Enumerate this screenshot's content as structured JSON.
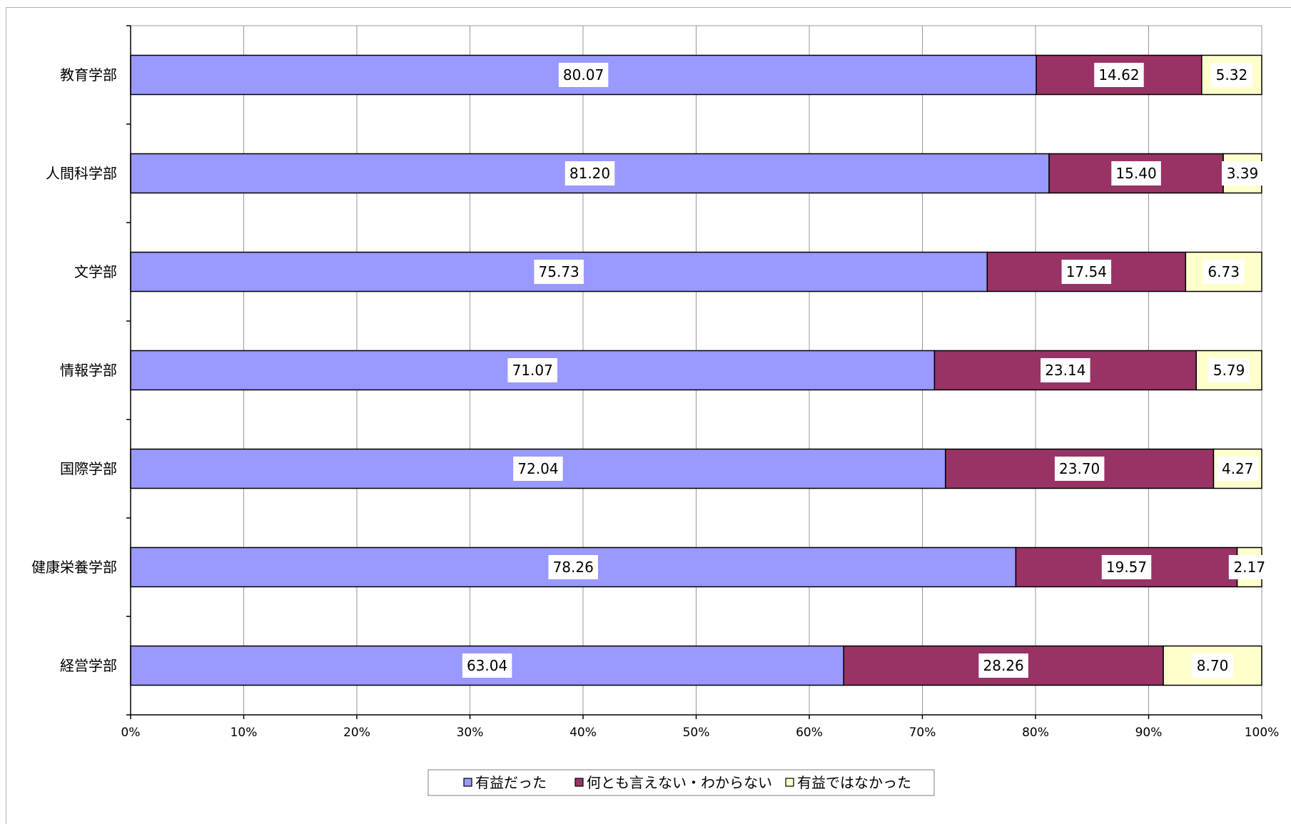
{
  "chart_data": {
    "type": "bar",
    "orientation": "horizontal",
    "stacked": "percent",
    "categories": [
      "教育学部",
      "人間科学部",
      "文学部",
      "情報学部",
      "国際学部",
      "健康栄養学部",
      "経営学部"
    ],
    "series": [
      {
        "name": "有益だった",
        "color": "#9999ff",
        "values": [
          80.07,
          81.2,
          75.73,
          71.07,
          72.04,
          78.26,
          63.04
        ]
      },
      {
        "name": "何とも言えない・わからない",
        "color": "#993366",
        "values": [
          14.62,
          15.4,
          17.54,
          23.14,
          23.7,
          19.57,
          28.26
        ]
      },
      {
        "name": "有益ではなかった",
        "color": "#ffffcc",
        "values": [
          5.32,
          3.39,
          6.73,
          5.79,
          4.27,
          2.17,
          8.7
        ]
      }
    ],
    "data_labels": [
      [
        "80.07",
        "81.20",
        "75.73",
        "71.07",
        "72.04",
        "78.26",
        "63.04"
      ],
      [
        "14.62",
        "15.40",
        "17.54",
        "23.14",
        "23.70",
        "19.57",
        "28.26"
      ],
      [
        "5.32",
        "3.39",
        "6.73",
        "5.79",
        "4.27",
        "2.17",
        "8.70"
      ]
    ],
    "x_ticks": [
      "0%",
      "10%",
      "20%",
      "30%",
      "40%",
      "50%",
      "60%",
      "70%",
      "80%",
      "90%",
      "100%"
    ],
    "xlim": [
      0,
      100
    ],
    "grid": "vertical",
    "legend": "bottom",
    "title": "",
    "xlabel": "",
    "ylabel": ""
  }
}
